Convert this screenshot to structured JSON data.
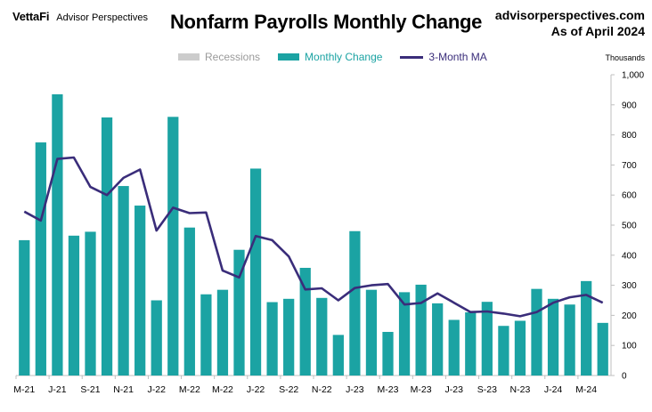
{
  "header": {
    "logo": "VettaFi",
    "brand": "Advisor Perspectives",
    "title": "Nonfarm Payrolls Monthly Change",
    "source_line1": "advisorperspectives.com",
    "source_line2": "As of April 2024"
  },
  "legend": {
    "recessions": "Recessions",
    "monthly": "Monthly Change",
    "ma": "3-Month MA"
  },
  "units": "Thousands",
  "colors": {
    "bar": "#1ba3a3",
    "line": "#3a2d7a",
    "recession": "#cccccc",
    "axis": "#bfbfbf",
    "recession_text": "#9a9a9a",
    "monthly_text": "#1ba3a3"
  },
  "chart_data": {
    "type": "bar",
    "title": "Nonfarm Payrolls Monthly Change",
    "ylabel": "Thousands",
    "ylim": [
      0,
      1000
    ],
    "yticks": [
      "0",
      "100",
      "200",
      "300",
      "400",
      "500",
      "600",
      "700",
      "800",
      "900",
      "1,000"
    ],
    "y_axis_side": "right",
    "grid": false,
    "legend_position": "top",
    "x_tick_labels": [
      "M-21",
      "J-21",
      "S-21",
      "N-21",
      "J-22",
      "M-22",
      "M-22",
      "J-22",
      "S-22",
      "N-22",
      "J-23",
      "M-23",
      "M-23",
      "J-23",
      "S-23",
      "N-23",
      "J-24",
      "M-24"
    ],
    "categories": [
      "2021-05",
      "2021-06",
      "2021-07",
      "2021-08",
      "2021-09",
      "2021-10",
      "2021-11",
      "2021-12",
      "2022-01",
      "2022-02",
      "2022-03",
      "2022-04",
      "2022-05",
      "2022-06",
      "2022-07",
      "2022-08",
      "2022-09",
      "2022-10",
      "2022-11",
      "2022-12",
      "2023-01",
      "2023-02",
      "2023-03",
      "2023-04",
      "2023-05",
      "2023-06",
      "2023-07",
      "2023-08",
      "2023-09",
      "2023-10",
      "2023-11",
      "2023-12",
      "2024-01",
      "2024-02",
      "2024-03",
      "2024-04"
    ],
    "series": [
      {
        "name": "Monthly Change",
        "type": "bar",
        "values": [
          450,
          775,
          935,
          465,
          478,
          858,
          630,
          565,
          250,
          860,
          492,
          270,
          285,
          418,
          688,
          244,
          255,
          358,
          258,
          135,
          480,
          285,
          145,
          277,
          302,
          240,
          185,
          210,
          245,
          165,
          182,
          288,
          255,
          236,
          314,
          175
        ]
      },
      {
        "name": "3-Month MA",
        "type": "line",
        "values": [
          545,
          515,
          720,
          725,
          627,
          600,
          657,
          685,
          482,
          558,
          540,
          542,
          349,
          326,
          464,
          450,
          396,
          286,
          290,
          250,
          291,
          300,
          304,
          236,
          241,
          273,
          242,
          211,
          213,
          206,
          197,
          211,
          242,
          260,
          268,
          242
        ]
      }
    ]
  }
}
